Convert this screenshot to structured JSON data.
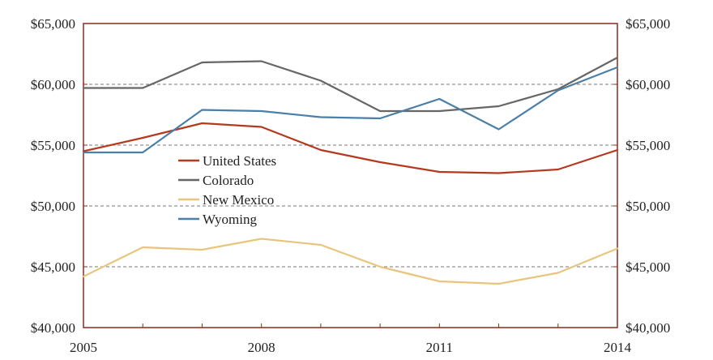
{
  "chart_data": {
    "type": "line",
    "title": "",
    "xlabel": "",
    "ylabel": "",
    "x": [
      2005,
      2006,
      2007,
      2008,
      2009,
      2010,
      2011,
      2012,
      2013,
      2014
    ],
    "xticks": [
      "2005",
      "2008",
      "2011",
      "2014"
    ],
    "xtick_values": [
      2005,
      2008,
      2011,
      2014
    ],
    "yticks": [
      "$40,000",
      "$45,000",
      "$50,000",
      "$55,000",
      "$60,000",
      "$65,000"
    ],
    "ytick_values": [
      40000,
      45000,
      50000,
      55000,
      60000,
      65000
    ],
    "xlim": [
      2005,
      2014
    ],
    "ylim": [
      40000,
      65000
    ],
    "secondary_y_axis": true,
    "grid": "horizontal-dashed",
    "legend_position": "center-left",
    "series": [
      {
        "name": "United States",
        "color": "#b5391e",
        "values": [
          54500,
          55600,
          56800,
          56500,
          54600,
          53600,
          52800,
          52700,
          53000,
          54600
        ]
      },
      {
        "name": "Colorado",
        "color": "#666666",
        "values": [
          59700,
          59700,
          61800,
          61900,
          60300,
          57800,
          57800,
          58200,
          59600,
          62200
        ]
      },
      {
        "name": "New Mexico",
        "color": "#e8c57f",
        "values": [
          44200,
          46600,
          46400,
          47300,
          46800,
          45000,
          43800,
          43600,
          44500,
          46500
        ]
      },
      {
        "name": "Wyoming",
        "color": "#4a7fa8",
        "values": [
          54400,
          54400,
          57900,
          57800,
          57300,
          57200,
          58800,
          56300,
          59500,
          61400
        ]
      }
    ]
  }
}
